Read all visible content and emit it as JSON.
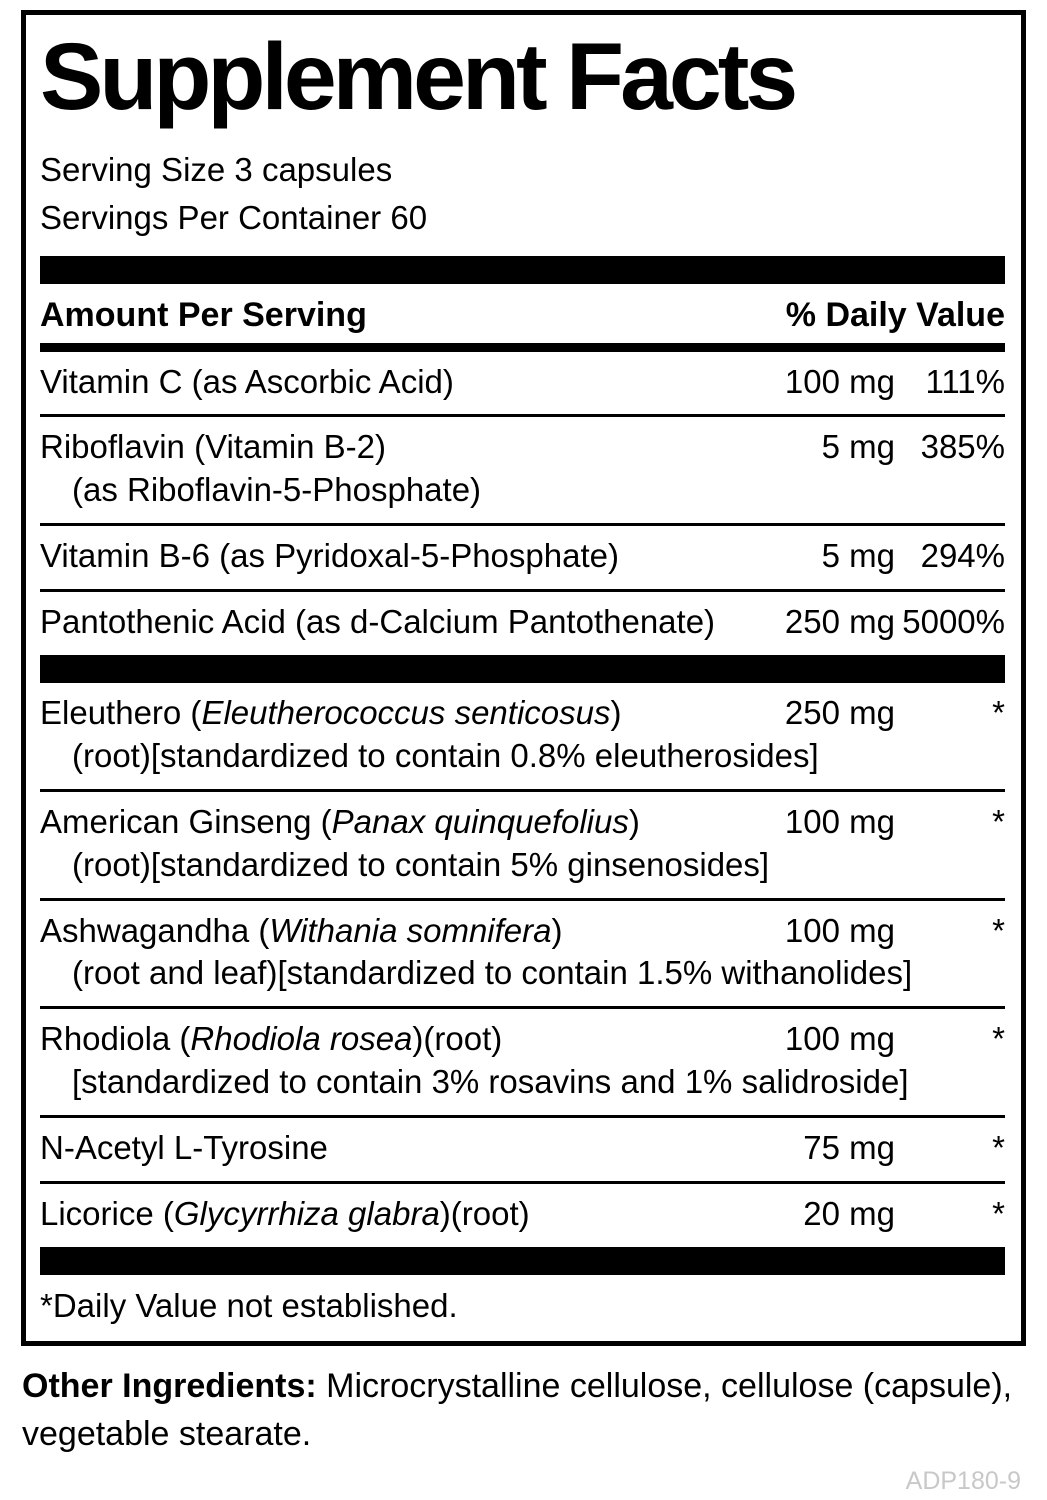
{
  "panel": {
    "title": "Supplement Facts",
    "serving_size": "Serving Size 3 capsules",
    "servings_per_container": "Servings Per Container 60",
    "columns": {
      "amount_header": "Amount Per Serving",
      "dv_header": "% Daily Value"
    },
    "sections": [
      {
        "rows": [
          {
            "name_parts": [
              {
                "t": "Vitamin C (as Ascorbic Acid)",
                "i": false
              }
            ],
            "amount": "100 mg",
            "dv": "111%"
          },
          {
            "name_parts": [
              {
                "t": "Riboflavin (Vitamin B-2)",
                "i": false
              }
            ],
            "subline": "(as Riboflavin-5-Phosphate)",
            "amount": "5 mg",
            "dv": "385%"
          },
          {
            "name_parts": [
              {
                "t": "Vitamin B-6 (as Pyridoxal-5-Phosphate)",
                "i": false
              }
            ],
            "amount": "5 mg",
            "dv": "294%"
          },
          {
            "name_parts": [
              {
                "t": "Pantothenic Acid (as d-Calcium Pantothenate)",
                "i": false
              }
            ],
            "amount": "250 mg",
            "dv": "5000%"
          }
        ]
      },
      {
        "rows": [
          {
            "name_parts": [
              {
                "t": "Eleuthero (",
                "i": false
              },
              {
                "t": "Eleutherococcus senticosus",
                "i": true
              },
              {
                "t": ")",
                "i": false
              }
            ],
            "subline": "(root)[standardized to contain 0.8% eleutherosides]",
            "amount": "250 mg",
            "dv": "*"
          },
          {
            "name_parts": [
              {
                "t": "American Ginseng (",
                "i": false
              },
              {
                "t": "Panax quinquefolius",
                "i": true
              },
              {
                "t": ")",
                "i": false
              }
            ],
            "subline": "(root)[standardized to contain 5% ginsenosides]",
            "amount": "100 mg",
            "dv": "*"
          },
          {
            "name_parts": [
              {
                "t": "Ashwagandha (",
                "i": false
              },
              {
                "t": "Withania somnifera",
                "i": true
              },
              {
                "t": ")",
                "i": false
              }
            ],
            "subline": "(root and leaf)[standardized to contain 1.5% withanolides]",
            "amount": "100 mg",
            "dv": "*"
          },
          {
            "name_parts": [
              {
                "t": "Rhodiola (",
                "i": false
              },
              {
                "t": "Rhodiola rosea",
                "i": true
              },
              {
                "t": ")(root)",
                "i": false
              }
            ],
            "subline": "[standardized to contain 3% rosavins and 1% salidroside]",
            "amount": "100 mg",
            "dv": "*"
          },
          {
            "name_parts": [
              {
                "t": "N-Acetyl L-Tyrosine",
                "i": false
              }
            ],
            "amount": "75 mg",
            "dv": "*"
          },
          {
            "name_parts": [
              {
                "t": "Licorice (",
                "i": false
              },
              {
                "t": "Glycyrrhiza glabra",
                "i": true
              },
              {
                "t": ")(root)",
                "i": false
              }
            ],
            "amount": "20 mg",
            "dv": "*"
          }
        ]
      }
    ],
    "footnote": "*Daily Value not established."
  },
  "other_ingredients": {
    "label": "Other Ingredients:",
    "text": "Microcrystalline cellulose, cellulose (capsule), vegetable stearate."
  },
  "code": "ADP180-9"
}
